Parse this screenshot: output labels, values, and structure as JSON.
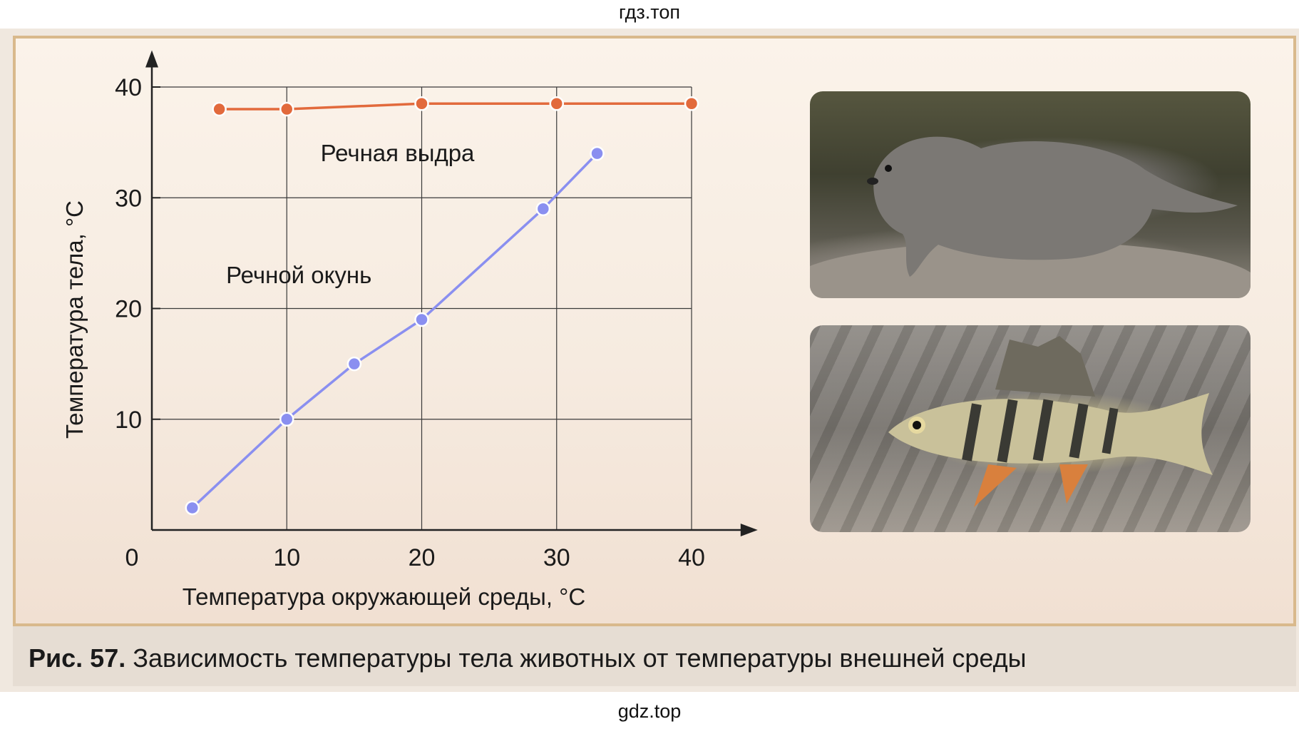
{
  "watermark_top": "гдз.топ",
  "watermark_bottom": "gdz.top",
  "caption": {
    "number": "Рис. 57.",
    "text": " Зависимость температуры тела животных от температуры внешней среды"
  },
  "photos": {
    "otter": "otter-photo",
    "perch": "perch-photo"
  },
  "colors": {
    "otter_series": "#e26a3c",
    "perch_series": "#8a8ff0",
    "grid": "#3a3a3a",
    "frame": "#d9b98c"
  },
  "chart_data": {
    "type": "line",
    "title": "",
    "xlabel": "Температура окружающей среды, °С",
    "ylabel": "Температура тела, °С",
    "xlim": [
      0,
      43
    ],
    "ylim": [
      0,
      41
    ],
    "x_ticks": [
      "0",
      "10",
      "20",
      "30",
      "40"
    ],
    "y_ticks": [
      "10",
      "20",
      "30",
      "40"
    ],
    "grid": true,
    "series": [
      {
        "name": "Речная выдра",
        "x": [
          5,
          10,
          20,
          30,
          40
        ],
        "y": [
          38,
          38,
          38.5,
          38.5,
          38.5
        ]
      },
      {
        "name": "Речной окунь",
        "x": [
          3,
          10,
          15,
          20,
          29,
          33
        ],
        "y": [
          2,
          10,
          15,
          19,
          29,
          34
        ]
      }
    ]
  }
}
